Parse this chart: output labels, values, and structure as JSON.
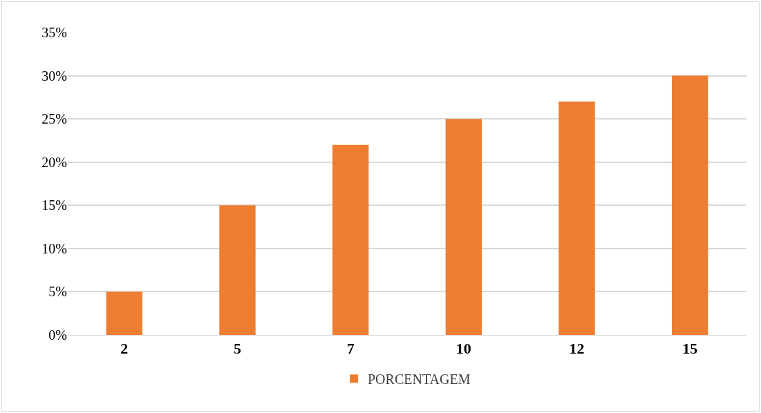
{
  "chart_data": {
    "type": "bar",
    "categories": [
      "2",
      "5",
      "7",
      "10",
      "12",
      "15"
    ],
    "series": [
      {
        "name": "PORCENTAGEM",
        "color": "#ed7d31",
        "values": [
          5,
          15,
          22,
          25,
          27,
          30
        ]
      }
    ],
    "ylim": [
      0,
      35
    ],
    "yticks": [
      {
        "value": 0,
        "label": "0%"
      },
      {
        "value": 5,
        "label": "5%"
      },
      {
        "value": 10,
        "label": "10%"
      },
      {
        "value": 15,
        "label": "15%"
      },
      {
        "value": 20,
        "label": "20%"
      },
      {
        "value": 25,
        "label": "25%"
      },
      {
        "value": 30,
        "label": "30%"
      },
      {
        "value": 35,
        "label": "35%"
      }
    ],
    "grid": "y",
    "legend": "bottom"
  }
}
